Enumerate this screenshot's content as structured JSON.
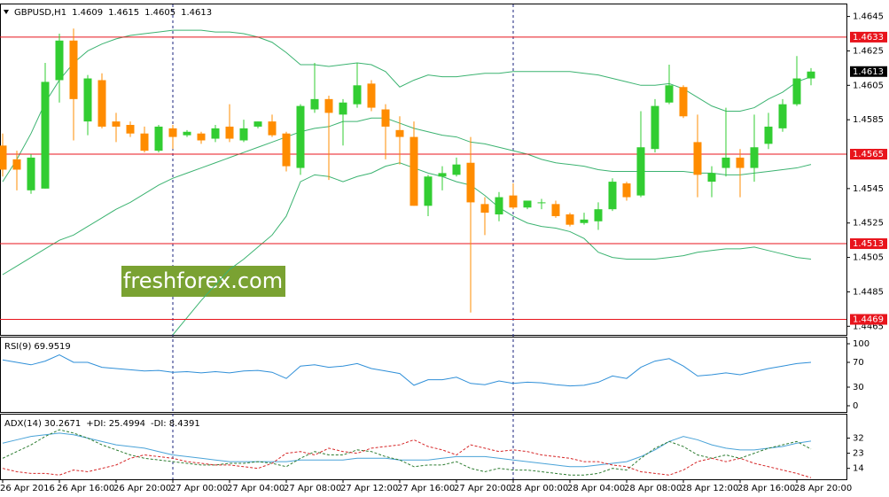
{
  "chart_data": [
    {
      "type": "candlestick",
      "title": "GBPUSD,H1",
      "categories": [
        "26 Apr 2016",
        null,
        null,
        null,
        "26 Apr 16:00",
        null,
        null,
        null,
        "26 Apr 20:00",
        null,
        null,
        null,
        "27 Apr 00:00",
        null,
        null,
        null,
        "27 Apr 04:00",
        null,
        null,
        null,
        "27 Apr 08:00",
        null,
        null,
        null,
        "27 Apr 12:00",
        null,
        null,
        null,
        "27 Apr 16:00",
        null,
        null,
        null,
        "27 Apr 20:00",
        null,
        null,
        null,
        "28 Apr 00:00",
        null,
        null,
        null,
        "28 Apr 04:00",
        null,
        null,
        null,
        "28 Apr 08:00",
        null,
        null,
        null,
        "28 Apr 12:00",
        null,
        null,
        null,
        "28 Apr 16:00",
        null,
        null,
        null,
        "28 Apr 20:00",
        null
      ],
      "open": [
        1.457,
        1.4562,
        1.4544,
        1.4545,
        1.4608,
        1.4631,
        1.4584,
        1.4608,
        1.4584,
        1.4582,
        1.4577,
        1.4567,
        1.458,
        1.4576,
        1.4577,
        1.4574,
        1.4581,
        1.4573,
        1.4581,
        1.4584,
        1.4577,
        1.4557,
        1.4591,
        1.4597,
        1.4588,
        1.4594,
        1.4606,
        1.4591,
        1.4579,
        1.4575,
        1.4535,
        1.4552,
        1.4553,
        1.456,
        1.4536,
        1.453,
        1.4541,
        1.4534,
        1.4537,
        1.4536,
        1.453,
        1.4525,
        1.4526,
        1.4533,
        1.4548,
        1.4541,
        1.4568,
        1.4595,
        1.4604,
        1.4572,
        1.4549,
        1.4557,
        1.4563,
        1.4557,
        1.4571,
        1.458,
        1.4594,
        1.4609
      ],
      "high": [
        1.4577,
        1.4567,
        1.4565,
        1.4618,
        1.4635,
        1.4638,
        1.4611,
        1.4612,
        1.4589,
        1.4584,
        1.4581,
        1.4582,
        1.4582,
        1.4579,
        1.4578,
        1.4582,
        1.4594,
        1.4585,
        1.4584,
        1.4588,
        1.4578,
        1.4594,
        1.4618,
        1.4599,
        1.4597,
        1.4618,
        1.4608,
        1.4594,
        1.4587,
        1.4584,
        1.4553,
        1.4558,
        1.4563,
        1.4575,
        1.454,
        1.4543,
        1.4548,
        1.4538,
        1.4539,
        1.4538,
        1.4531,
        1.4531,
        1.4537,
        1.4551,
        1.4549,
        1.459,
        1.4597,
        1.4617,
        1.4605,
        1.4588,
        1.4558,
        1.4592,
        1.4568,
        1.4588,
        1.4589,
        1.4597,
        1.4622,
        1.4615
      ],
      "low": [
        1.4552,
        1.4544,
        1.4542,
        1.4545,
        1.4595,
        1.4573,
        1.4576,
        1.458,
        1.4572,
        1.4575,
        1.4566,
        1.4566,
        1.4568,
        1.4575,
        1.4571,
        1.4572,
        1.4572,
        1.4572,
        1.458,
        1.4575,
        1.4555,
        1.4553,
        1.4589,
        1.455,
        1.457,
        1.4592,
        1.459,
        1.4562,
        1.4559,
        1.4535,
        1.4529,
        1.4544,
        1.4552,
        1.4473,
        1.4518,
        1.4526,
        1.4533,
        1.4533,
        1.4533,
        1.4528,
        1.4523,
        1.4524,
        1.4521,
        1.4532,
        1.4538,
        1.454,
        1.4566,
        1.4594,
        1.4586,
        1.454,
        1.454,
        1.4552,
        1.454,
        1.4549,
        1.4568,
        1.4578,
        1.4593,
        1.4605
      ],
      "close": [
        1.4556,
        1.4556,
        1.4563,
        1.4607,
        1.4631,
        1.4597,
        1.4609,
        1.4581,
        1.4581,
        1.4577,
        1.4567,
        1.4581,
        1.4575,
        1.4578,
        1.4573,
        1.458,
        1.4574,
        1.458,
        1.4584,
        1.4576,
        1.4558,
        1.4593,
        1.4597,
        1.4589,
        1.4595,
        1.4605,
        1.4592,
        1.4581,
        1.4575,
        1.4535,
        1.4552,
        1.4554,
        1.4559,
        1.4537,
        1.4531,
        1.454,
        1.4534,
        1.4538,
        1.4537,
        1.4529,
        1.4524,
        1.4527,
        1.4533,
        1.4549,
        1.454,
        1.4569,
        1.4593,
        1.4605,
        1.4587,
        1.4553,
        1.4554,
        1.4563,
        1.4557,
        1.4569,
        1.4581,
        1.4594,
        1.4609,
        1.4613
      ],
      "up_color": "#32cd32",
      "down_color": "#ff8c00",
      "bands": [
        {
          "color": "#3cb371",
          "values": [
            1.4549,
            1.4562,
            1.4577,
            1.4595,
            1.4608,
            1.4618,
            1.4625,
            1.4629,
            1.4632,
            1.4634,
            1.4635,
            1.4636,
            1.4637,
            1.4637,
            1.4637,
            1.4636,
            1.4636,
            1.4635,
            1.4633,
            1.463,
            1.4624,
            1.4617,
            1.4617,
            1.4616,
            1.4617,
            1.4618,
            1.4617,
            1.4613,
            1.4604,
            1.4608,
            1.4611,
            1.461,
            1.461,
            1.4611,
            1.4612,
            1.4612,
            1.4613,
            1.4613,
            1.4613,
            1.4613,
            1.4613,
            1.4612,
            1.4611,
            1.4609,
            1.4607,
            1.4605,
            1.4605,
            1.4606,
            1.4603,
            1.4598,
            1.4593,
            1.459,
            1.459,
            1.4592,
            1.4597,
            1.4601,
            1.4607,
            1.461
          ]
        },
        {
          "color": "#3cb371",
          "values": [
            1.4495,
            1.45,
            1.4505,
            1.451,
            1.4515,
            1.4518,
            1.4523,
            1.4528,
            1.4533,
            1.4537,
            1.4542,
            1.4547,
            1.4551,
            1.4554,
            1.4557,
            1.456,
            1.4563,
            1.4566,
            1.4569,
            1.4572,
            1.4575,
            1.4578,
            1.458,
            1.4581,
            1.4584,
            1.4584,
            1.4586,
            1.4586,
            1.4583,
            1.458,
            1.4578,
            1.4576,
            1.4575,
            1.4572,
            1.4571,
            1.4569,
            1.4567,
            1.4565,
            1.4562,
            1.456,
            1.4559,
            1.4558,
            1.4556,
            1.4555,
            1.4555,
            1.4555,
            1.4555,
            1.4555,
            1.4555,
            1.4554,
            1.4554,
            1.4553,
            1.4553,
            1.4554,
            1.4555,
            1.4556,
            1.4557,
            1.4559
          ]
        },
        {
          "color": "#3cb371",
          "values": [
            null,
            null,
            null,
            null,
            null,
            null,
            null,
            null,
            null,
            null,
            null,
            null,
            1.446,
            1.447,
            1.448,
            1.4489,
            1.4498,
            1.4504,
            1.4511,
            1.4518,
            1.4529,
            1.4549,
            1.4553,
            1.4552,
            1.4549,
            1.4552,
            1.4554,
            1.4558,
            1.456,
            1.4557,
            1.4554,
            1.4552,
            1.4549,
            1.4547,
            1.4541,
            1.4534,
            1.4529,
            1.4525,
            1.4523,
            1.4522,
            1.452,
            1.4516,
            1.4508,
            1.4505,
            1.4504,
            1.4504,
            1.4504,
            1.4505,
            1.4506,
            1.4508,
            1.4509,
            1.451,
            1.451,
            1.4511,
            1.4509,
            1.4507,
            1.4505,
            1.4504
          ]
        }
      ],
      "levels": [
        1.4633,
        1.4565,
        1.4513,
        1.4469
      ],
      "level_color": "#e8141c",
      "price_label_color": "#000000",
      "ylim": [
        1.446,
        1.4652
      ],
      "yticks": [
        1.4645,
        1.4625,
        1.4605,
        1.4585,
        1.4545,
        1.4525,
        1.4505,
        1.4485,
        1.4465
      ],
      "watermark": "freshforex.com",
      "watermark_color": "#7aa232"
    },
    {
      "type": "line",
      "series": [
        {
          "name": "RSI(9)",
          "color": "#2f8fd8",
          "values": [
            74,
            70,
            66,
            72,
            82,
            70,
            70,
            62,
            60,
            58,
            56,
            57,
            54,
            55,
            53,
            55,
            53,
            56,
            57,
            54,
            44,
            64,
            66,
            62,
            64,
            68,
            60,
            56,
            52,
            33,
            42,
            42,
            46,
            36,
            34,
            40,
            36,
            38,
            37,
            34,
            32,
            33,
            38,
            48,
            44,
            62,
            72,
            76,
            64,
            48,
            50,
            53,
            50,
            55,
            60,
            64,
            68,
            69.9519
          ]
        }
      ],
      "ylim": [
        -10,
        110
      ],
      "yticks": [
        100,
        70,
        30,
        0
      ]
    },
    {
      "type": "line",
      "series": [
        {
          "name": "ADX(14)",
          "color": "#4aa3d8",
          "values": [
            29,
            31,
            33,
            34,
            35,
            34,
            32,
            30,
            28,
            27,
            26,
            24,
            22,
            21,
            20,
            19,
            18,
            18,
            18,
            18,
            18,
            19,
            19,
            19,
            19,
            20,
            20,
            20,
            19,
            19,
            19,
            20,
            21,
            21,
            21,
            20,
            19,
            18,
            17,
            16,
            15,
            15,
            16,
            17,
            18,
            21,
            25,
            30,
            33,
            31,
            28,
            26,
            25,
            25,
            26,
            27,
            29,
            30.2671
          ]
        },
        {
          "name": "+DI:",
          "color": "#2e7d32",
          "dash": true,
          "values": [
            20,
            24,
            28,
            33,
            37,
            35,
            32,
            28,
            25,
            22,
            20,
            19,
            18,
            17,
            16,
            16,
            17,
            17,
            18,
            17,
            15,
            20,
            24,
            22,
            22,
            25,
            24,
            21,
            19,
            15,
            16,
            16,
            18,
            14,
            12,
            14,
            13,
            13,
            12,
            11,
            10,
            10,
            11,
            14,
            13,
            20,
            26,
            30,
            27,
            22,
            20,
            22,
            20,
            23,
            26,
            28,
            30,
            25.4994
          ]
        },
        {
          "name": "-DI:",
          "color": "#d62728",
          "dash": true,
          "values": [
            14,
            12,
            11,
            11,
            10,
            13,
            12,
            14,
            16,
            20,
            22,
            21,
            20,
            18,
            17,
            16,
            16,
            15,
            14,
            17,
            23,
            24,
            22,
            26,
            24,
            23,
            26,
            27,
            28,
            31,
            27,
            25,
            22,
            28,
            26,
            24,
            25,
            24,
            22,
            21,
            20,
            18,
            18,
            16,
            15,
            12,
            11,
            10,
            13,
            18,
            20,
            18,
            20,
            17,
            15,
            13,
            11,
            8.4391
          ]
        }
      ],
      "ylim": [
        7.5,
        46
      ],
      "yticks": [
        32,
        23,
        14
      ]
    }
  ]
}
